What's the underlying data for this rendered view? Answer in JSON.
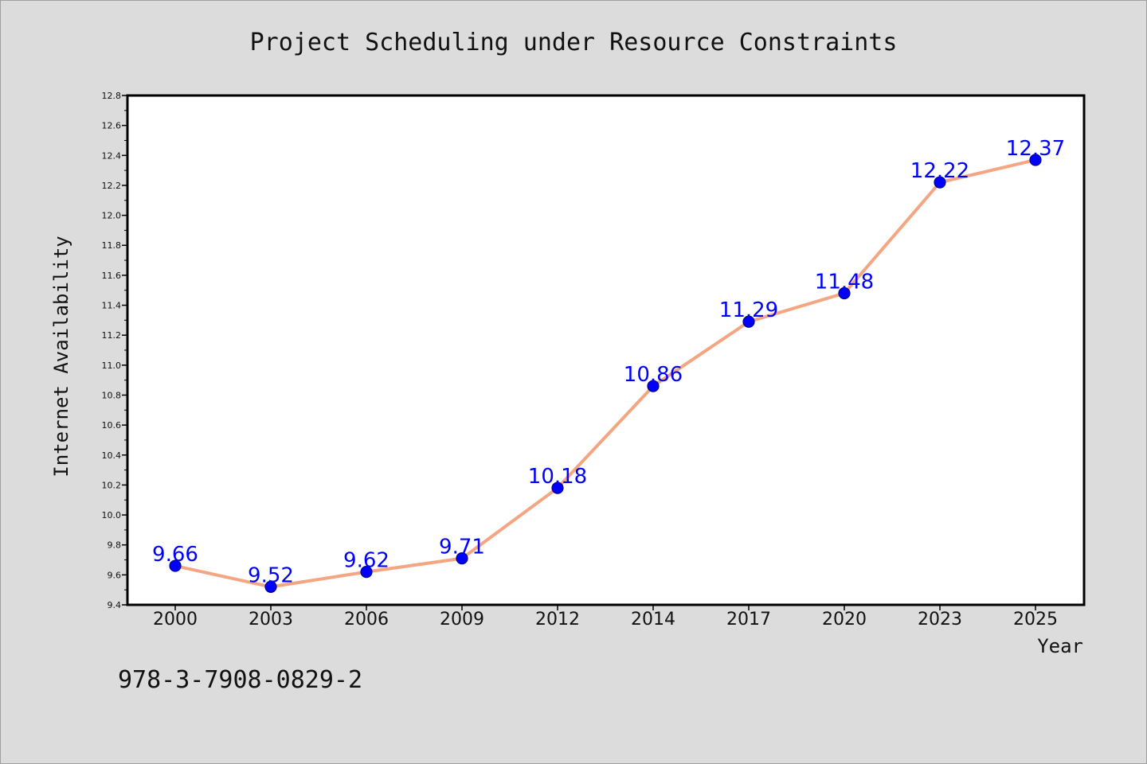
{
  "chart_data": {
    "type": "line",
    "title": "Project Scheduling under Resource Constraints",
    "xlabel": "Year",
    "ylabel": "Internet Availability",
    "categories": [
      "2000",
      "2003",
      "2006",
      "2009",
      "2012",
      "2014",
      "2017",
      "2020",
      "2023",
      "2025"
    ],
    "series": [
      {
        "values": [
          9.66,
          9.52,
          9.62,
          9.71,
          10.18,
          10.86,
          11.29,
          11.48,
          12.22,
          12.37
        ],
        "labels": [
          "9.66",
          "9.52",
          "9.62",
          "9.71",
          "10.18",
          "10.86",
          "11.29",
          "11.48",
          "12.22",
          "12.37"
        ]
      }
    ],
    "ylim": [
      9.4,
      12.8
    ],
    "y_ticks": [
      "9.4",
      "9.6",
      "9.8",
      "10.0",
      "10.2",
      "10.4",
      "10.6",
      "10.8",
      "11.0",
      "11.2",
      "11.4",
      "11.6",
      "11.8",
      "12.0",
      "12.2",
      "12.4",
      "12.6",
      "12.8"
    ],
    "grid": false,
    "legend": "none",
    "colors": {
      "line": "#f4a582",
      "marker": "#0000ff",
      "marker_edge": "#00008b",
      "data_label": "#0000ff",
      "background": "#dcdcdc",
      "plot_background": "#ffffff"
    }
  },
  "footer": {
    "isbn": "978-3-7908-0829-2"
  }
}
